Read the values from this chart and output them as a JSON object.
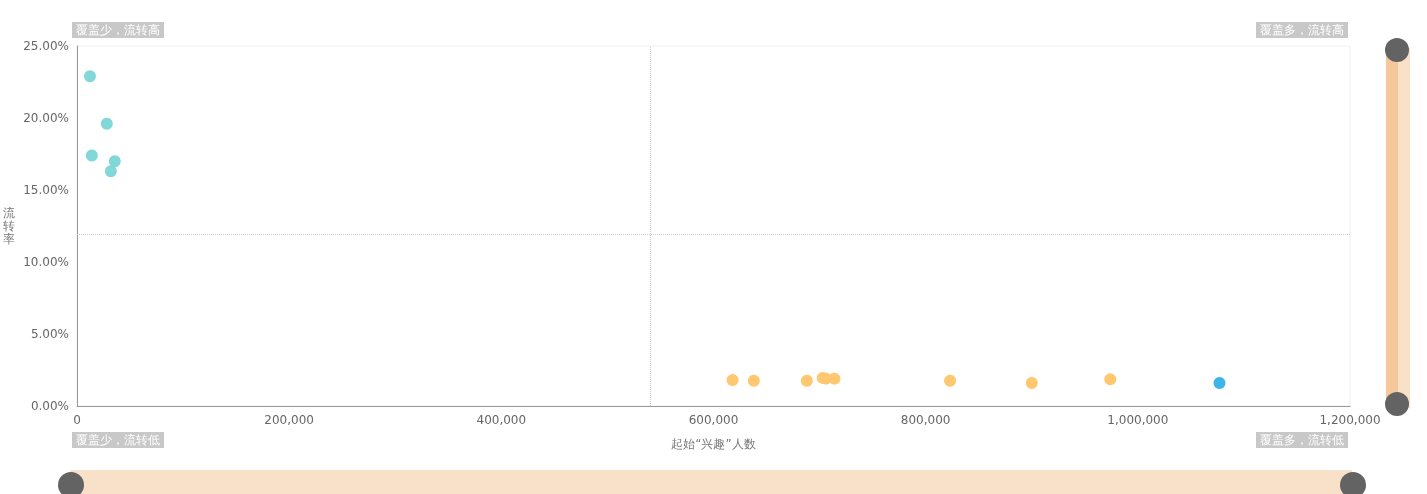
{
  "chart_data": {
    "type": "scatter",
    "xlabel": "起始“兴趣”人数",
    "ylabel": "流转率",
    "series": [
      {
        "color": "#82d8d8",
        "x": [
          12200,
          28100,
          14000,
          35600,
          31900
        ],
        "values": [
          22.9,
          19.6,
          17.4,
          17.0,
          16.3
        ]
      },
      {
        "color": "#ffc76f",
        "x": [
          618000,
          638000,
          688000,
          703000,
          706000,
          714000,
          823000,
          900000,
          974000
        ],
        "values": [
          1.8,
          1.75,
          1.75,
          1.95,
          1.9,
          1.9,
          1.75,
          1.6,
          1.85
        ]
      },
      {
        "color": "#3eb5e8",
        "x": [
          1077000
        ],
        "values": [
          1.6
        ]
      }
    ],
    "xlim": [
      0,
      1200000
    ],
    "ylim": [
      0,
      25
    ],
    "xticks": [
      0,
      {
        "value": 200000,
        "label": "200,000"
      },
      {
        "value": 400000,
        "label": "400,000"
      },
      {
        "value": 600000,
        "label": "600,000"
      },
      {
        "value": 800000,
        "label": "800,000"
      },
      {
        "value": 1000000,
        "label": "1,000,000"
      },
      {
        "value": 1200000,
        "label": "1,200,000"
      }
    ],
    "yticks": [
      {
        "value": 0,
        "label": "0.00%"
      },
      {
        "value": 5,
        "label": "5.00%"
      },
      {
        "value": 10,
        "label": "10.00%"
      },
      {
        "value": 15,
        "label": "15.00%"
      },
      {
        "value": 20,
        "label": "20.00%"
      },
      {
        "value": 25,
        "label": "25.00%"
      }
    ],
    "ref_lines": [
      {
        "axis": "x",
        "value": 540000,
        "color": "#cccccc",
        "line_style": "dotted"
      },
      {
        "axis": "y",
        "value": 11.9,
        "color": "#cccccc",
        "line_style": "dotted"
      }
    ],
    "annotations": [
      "覆盖少，流转高",
      "覆盖多，流转高",
      "覆盖少，流转低",
      "覆盖多，流转低"
    ],
    "marker": "circle"
  }
}
